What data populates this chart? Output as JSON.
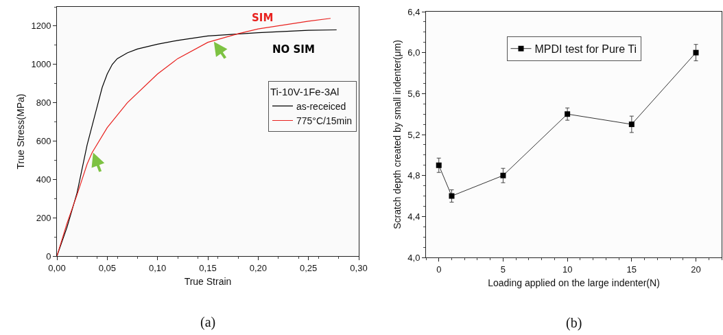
{
  "chart_data": [
    {
      "type": "line",
      "xlabel": "True Strain",
      "ylabel": "True Stress(MPa)",
      "legend_title": "Ti-10V-1Fe-3Al",
      "legend": "right",
      "grid": false,
      "line_style": "solid",
      "xlim": [
        0,
        0.3
      ],
      "xticks": [
        {
          "value": 0,
          "label": "0,00"
        },
        {
          "value": 0.05,
          "label": "0,05"
        },
        {
          "value": 0.1,
          "label": "0,10"
        },
        {
          "value": 0.15,
          "label": "0,15"
        },
        {
          "value": 0.2,
          "label": "0,20"
        },
        {
          "value": 0.25,
          "label": "0,25"
        },
        {
          "value": 0.3,
          "label": "0,30"
        }
      ],
      "ylim": [
        0,
        1300
      ],
      "yticks": [
        0,
        200,
        400,
        600,
        800,
        1000,
        1200
      ],
      "series": [
        {
          "name": "as-receiced",
          "color": "#000000",
          "x": [
            0,
            0.01,
            0.02,
            0.03,
            0.04,
            0.045,
            0.05,
            0.055,
            0.06,
            0.07,
            0.08,
            0.1,
            0.12,
            0.15,
            0.2,
            0.25,
            0.278
          ],
          "values": [
            0,
            150,
            330,
            580,
            780,
            880,
            950,
            1000,
            1030,
            1060,
            1080,
            1105,
            1125,
            1148,
            1165,
            1178,
            1180
          ]
        },
        {
          "name": "775°C/15min",
          "color": "#e8211e",
          "x": [
            0,
            0.01,
            0.02,
            0.03,
            0.035,
            0.05,
            0.07,
            0.1,
            0.12,
            0.15,
            0.18,
            0.2,
            0.25,
            0.272
          ],
          "values": [
            0,
            170,
            320,
            480,
            540,
            670,
            800,
            950,
            1030,
            1115,
            1160,
            1185,
            1225,
            1240
          ]
        }
      ],
      "annotations": [
        "SIM",
        "NO SIM",
        "(a)"
      ]
    },
    {
      "type": "line",
      "xlabel": "Loading applied on the large indenter(N)",
      "ylabel": "Scratch depth created by small indenter(μm)",
      "legend": "top",
      "grid": false,
      "marker": "square",
      "line_style": "solid",
      "xlim": [
        -1,
        22
      ],
      "xticks": [
        0,
        5,
        10,
        15,
        20
      ],
      "ylim": [
        4.0,
        6.4
      ],
      "yticks": [
        {
          "value": 4.0,
          "label": "4,0"
        },
        {
          "value": 4.4,
          "label": "4,4"
        },
        {
          "value": 4.8,
          "label": "4,8"
        },
        {
          "value": 5.2,
          "label": "5,2"
        },
        {
          "value": 5.6,
          "label": "5,6"
        },
        {
          "value": 6.0,
          "label": "6,0"
        },
        {
          "value": 6.4,
          "label": "6,4"
        }
      ],
      "series": [
        {
          "name": "MPDI test for Pure Ti",
          "color": "#000000",
          "x": [
            0,
            1,
            5,
            10,
            15,
            20
          ],
          "values": [
            4.9,
            4.6,
            4.8,
            5.4,
            5.3,
            6.0
          ],
          "errors": [
            0.07,
            0.06,
            0.07,
            0.06,
            0.08,
            0.08
          ]
        }
      ],
      "annotations": [
        "(b)"
      ]
    }
  ]
}
